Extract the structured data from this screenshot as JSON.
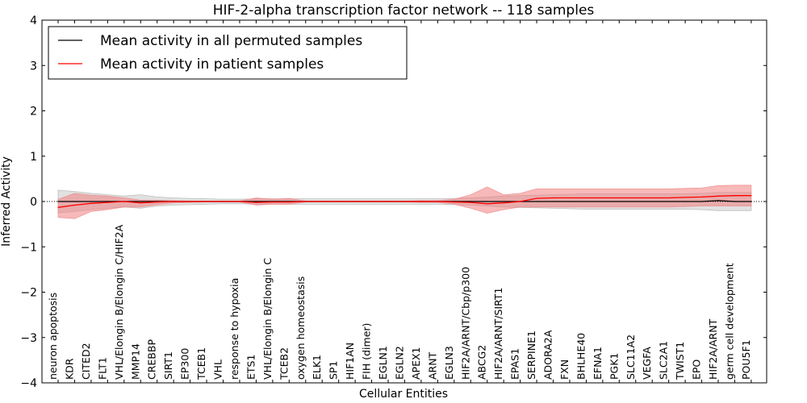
{
  "chart_data": {
    "type": "line",
    "title": "HIF-2-alpha transcription factor network -- 118 samples",
    "xlabel": "Cellular Entities",
    "ylabel": "Inferred Activity",
    "ylim": [
      -4,
      4
    ],
    "yticks": [
      -4,
      -3,
      -2,
      -1,
      0,
      1,
      2,
      3,
      4
    ],
    "ytick_labels": [
      "−4",
      "−3",
      "−2",
      "−1",
      "0",
      "1",
      "2",
      "3",
      "4"
    ],
    "grid": false,
    "legend_position": "top-left",
    "categories": [
      "neuron apoptosis",
      "KDR",
      "CITED2",
      "FLT1",
      "VHL/Elongin B/Elongin C/HIF2A",
      "MMP14",
      "CREBBP",
      "SIRT1",
      "EP300",
      "TCEB1",
      "VHL",
      "response to hypoxia",
      "ETS1",
      "VHL/Elongin B/Elongin C",
      "TCEB2",
      "oxygen homeostasis",
      "ELK1",
      "SP1",
      "HIF1AN",
      "FIH (dimer)",
      "EGLN1",
      "EGLN2",
      "APEX1",
      "ARNT",
      "EGLN3",
      "HIF2A/ARNT/Cbp/p300",
      "ABCG2",
      "HIF2A/ARNT/SIRT1",
      "EPAS1",
      "SERPINE1",
      "ADORA2A",
      "FXN",
      "BHLHE40",
      "EFNA1",
      "PGK1",
      "SLC11A2",
      "VEGFA",
      "SLC2A1",
      "TWIST1",
      "EPO",
      "HIF2A/ARNT",
      "germ cell development",
      "POU5F1"
    ],
    "series": [
      {
        "name": "Mean activity in all permuted samples",
        "color": "#000000",
        "band_color": "#aaaaaa",
        "values": [
          0.0,
          0.0,
          0.0,
          0.0,
          0.0,
          0.0,
          0.0,
          0.0,
          0.0,
          0.0,
          0.0,
          0.0,
          0.0,
          0.0,
          0.0,
          0.0,
          0.0,
          0.0,
          0.0,
          0.0,
          0.0,
          0.0,
          0.0,
          0.0,
          0.0,
          0.0,
          0.0,
          0.0,
          0.0,
          0.0,
          0.0,
          0.0,
          0.0,
          0.0,
          0.0,
          0.0,
          0.0,
          0.0,
          0.0,
          0.0,
          0.02,
          0.0,
          0.0
        ],
        "upper": [
          0.25,
          0.22,
          0.18,
          0.15,
          0.12,
          0.15,
          0.1,
          0.08,
          0.07,
          0.06,
          0.05,
          0.05,
          0.06,
          0.06,
          0.06,
          0.06,
          0.06,
          0.06,
          0.06,
          0.06,
          0.06,
          0.06,
          0.06,
          0.06,
          0.07,
          0.08,
          0.1,
          0.12,
          0.13,
          0.14,
          0.15,
          0.16,
          0.17,
          0.17,
          0.17,
          0.17,
          0.17,
          0.17,
          0.17,
          0.18,
          0.2,
          0.2,
          0.2
        ],
        "lower": [
          -0.25,
          -0.22,
          -0.18,
          -0.15,
          -0.12,
          -0.15,
          -0.1,
          -0.08,
          -0.07,
          -0.06,
          -0.05,
          -0.05,
          -0.06,
          -0.06,
          -0.06,
          -0.06,
          -0.06,
          -0.06,
          -0.06,
          -0.06,
          -0.06,
          -0.06,
          -0.06,
          -0.06,
          -0.07,
          -0.08,
          -0.1,
          -0.12,
          -0.13,
          -0.14,
          -0.15,
          -0.16,
          -0.17,
          -0.17,
          -0.17,
          -0.17,
          -0.17,
          -0.17,
          -0.17,
          -0.18,
          -0.2,
          -0.2,
          -0.2
        ]
      },
      {
        "name": "Mean activity in patient samples",
        "color": "#ff0000",
        "band_color": "#f08080",
        "values": [
          -0.13,
          -0.08,
          -0.04,
          -0.02,
          0.0,
          -0.03,
          -0.01,
          0.0,
          0.0,
          0.0,
          0.0,
          0.0,
          -0.02,
          -0.01,
          -0.01,
          0.0,
          0.0,
          0.0,
          0.0,
          0.0,
          0.0,
          0.0,
          0.0,
          0.0,
          -0.01,
          -0.02,
          -0.05,
          -0.03,
          0.0,
          0.07,
          0.08,
          0.08,
          0.08,
          0.08,
          0.08,
          0.08,
          0.08,
          0.08,
          0.09,
          0.1,
          0.12,
          0.13,
          0.13
        ],
        "upper": [
          0.05,
          0.18,
          0.14,
          0.12,
          0.08,
          0.03,
          0.03,
          0.02,
          0.01,
          0.01,
          0.01,
          0.01,
          0.08,
          0.05,
          0.07,
          0.01,
          0.01,
          0.01,
          0.01,
          0.01,
          0.01,
          0.01,
          0.02,
          0.02,
          0.05,
          0.15,
          0.32,
          0.15,
          0.18,
          0.28,
          0.28,
          0.28,
          0.28,
          0.28,
          0.28,
          0.28,
          0.28,
          0.28,
          0.29,
          0.3,
          0.35,
          0.36,
          0.36
        ],
        "lower": [
          -0.35,
          -0.38,
          -0.22,
          -0.18,
          -0.12,
          -0.12,
          -0.07,
          -0.03,
          -0.02,
          -0.01,
          -0.01,
          -0.01,
          -0.08,
          -0.06,
          -0.06,
          -0.01,
          -0.01,
          -0.01,
          -0.01,
          -0.01,
          -0.01,
          -0.01,
          -0.02,
          -0.02,
          -0.06,
          -0.15,
          -0.26,
          -0.18,
          -0.12,
          -0.12,
          -0.12,
          -0.12,
          -0.12,
          -0.12,
          -0.12,
          -0.12,
          -0.12,
          -0.12,
          -0.11,
          -0.1,
          -0.1,
          -0.1,
          -0.1
        ]
      }
    ]
  }
}
